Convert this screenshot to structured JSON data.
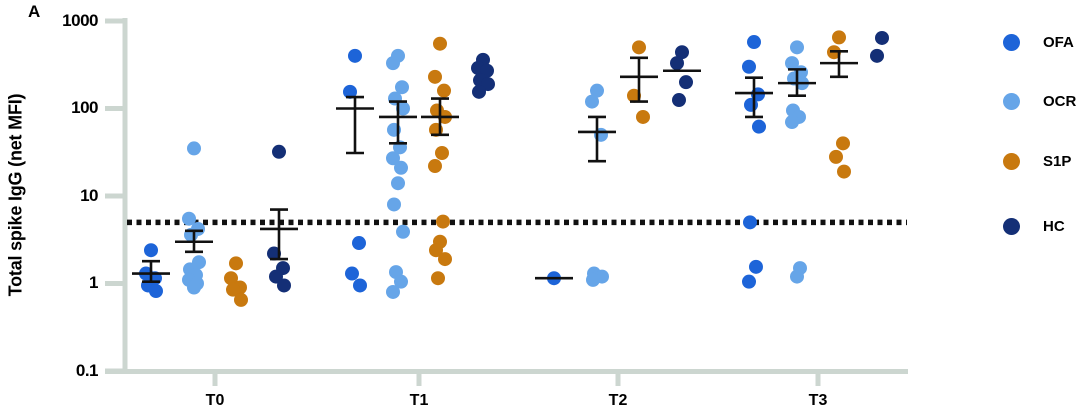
{
  "panel_label": "A",
  "colors": {
    "axis": "#ccd6d0",
    "cutoff": "#111111",
    "errorbar": "#111111"
  },
  "legend": [
    {
      "label": "OFA",
      "color": "#1d64d8"
    },
    {
      "label": "OCR",
      "color": "#66a5e8"
    },
    {
      "label": "S1P",
      "color": "#c8790f"
    },
    {
      "label": "HC",
      "color": "#142f76"
    }
  ],
  "chart_data": {
    "type": "scatter",
    "title": "",
    "xlabel": "",
    "ylabel": "Total spike IgG (net MFI)",
    "yscale": "log",
    "ylim": [
      0.1,
      1000
    ],
    "yticks": [
      "1000",
      "100",
      "10",
      "1",
      "0.1"
    ],
    "categories": [
      "T0",
      "T1",
      "T2",
      "T3"
    ],
    "cutoff_value": 5,
    "grid": false,
    "legend_position": "right",
    "series": [
      {
        "name": "OFA",
        "color": "#1d64d8",
        "points": {
          "T0": [
            2.4,
            1.3,
            1.15,
            0.95,
            0.82
          ],
          "T1": [
            400,
            155,
            2.9,
            1.3,
            0.95
          ],
          "T2": [
            1.15
          ],
          "T3": [
            575,
            300,
            145,
            110,
            62,
            5,
            1.55,
            1.05
          ]
        },
        "mean": {
          "T0": 1.3,
          "T1": 100,
          "T2": 1.15,
          "T3": 150
        },
        "err_lo": {
          "T0": 1.05,
          "T1": 31,
          "T3": 80
        },
        "err_hi": {
          "T0": 1.8,
          "T1": 135,
          "T3": 225
        }
      },
      {
        "name": "OCR",
        "color": "#66a5e8",
        "points": {
          "T0": [
            35,
            5.5,
            4.2,
            3.6,
            1.75,
            1.45,
            1.25,
            1.1,
            1.0,
            0.9
          ],
          "T1": [
            400,
            330,
            175,
            130,
            100,
            57,
            36,
            27,
            21,
            14,
            8,
            3.9,
            1.35,
            1.05,
            0.8
          ],
          "T2": [
            160,
            120,
            50,
            1.3,
            1.2,
            1.1
          ],
          "T3": [
            500,
            330,
            260,
            220,
            195,
            95,
            80,
            70,
            1.5,
            1.2
          ]
        },
        "mean": {
          "T0": 3.0,
          "T1": 80,
          "T2": 54,
          "T3": 195
        },
        "err_lo": {
          "T0": 2.3,
          "T1": 40,
          "T2": 25,
          "T3": 140
        },
        "err_hi": {
          "T0": 4.0,
          "T1": 120,
          "T2": 80,
          "T3": 280
        }
      },
      {
        "name": "S1P",
        "color": "#c8790f",
        "points": {
          "T0": [
            1.7,
            1.15,
            0.9,
            0.85,
            0.65
          ],
          "T1": [
            550,
            230,
            160,
            95,
            80,
            57,
            31,
            22,
            5.1,
            3.0,
            2.4,
            1.9,
            1.15
          ],
          "T2": [
            500,
            140,
            80
          ],
          "T3": [
            650,
            440,
            40,
            28,
            19
          ]
        },
        "mean": {
          "T1": 80,
          "T2": 230,
          "T3": 330
        },
        "err_lo": {
          "T1": 50,
          "T2": 120,
          "T3": 230
        },
        "err_hi": {
          "T1": 130,
          "T2": 380,
          "T3": 450
        }
      },
      {
        "name": "HC",
        "color": "#142f76",
        "points": {
          "T0": [
            32,
            2.2,
            1.5,
            1.2,
            0.95
          ],
          "T1": [
            360,
            290,
            270,
            210,
            190,
            155
          ],
          "T2": [
            440,
            330,
            200,
            125
          ],
          "T3": [
            640,
            400
          ]
        },
        "mean": {
          "T0": 4.2,
          "T2": 270
        },
        "err_lo": {
          "T0": 1.9
        },
        "err_hi": {
          "T0": 7
        }
      }
    ]
  }
}
